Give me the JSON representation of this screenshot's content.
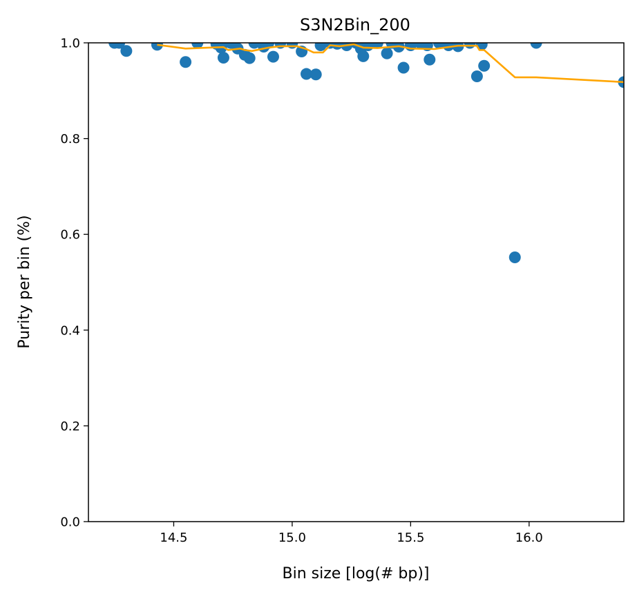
{
  "chart_data": {
    "type": "scatter",
    "title": "S3N2Bin_200",
    "xlabel": "Bin size [log(# bp)]",
    "ylabel": "Purity per bin (%)",
    "xlim": [
      14.14,
      16.4
    ],
    "ylim": [
      0.0,
      1.0
    ],
    "xticks": [
      14.5,
      15.0,
      15.5,
      16.0
    ],
    "xtick_labels": [
      "14.5",
      "15.0",
      "15.5",
      "16.0"
    ],
    "yticks": [
      0.0,
      0.2,
      0.4,
      0.6,
      0.8,
      1.0
    ],
    "ytick_labels": [
      "0.0",
      "0.2",
      "0.4",
      "0.6",
      "0.8",
      "1.0"
    ],
    "grid": false,
    "colors": {
      "points": "#1f77b4",
      "trend": "#ffa500"
    },
    "series": [
      {
        "kind": "scatter",
        "points": [
          [
            14.25,
            1.0
          ],
          [
            14.27,
            1.0
          ],
          [
            14.3,
            0.983
          ],
          [
            14.43,
            0.996
          ],
          [
            14.55,
            0.96
          ],
          [
            14.6,
            1.0
          ],
          [
            14.68,
            0.998
          ],
          [
            14.7,
            0.99
          ],
          [
            14.71,
            0.969
          ],
          [
            14.74,
            1.0
          ],
          [
            14.77,
            0.988
          ],
          [
            14.8,
            0.975
          ],
          [
            14.82,
            0.968
          ],
          [
            14.84,
            1.0
          ],
          [
            14.88,
            0.992
          ],
          [
            14.9,
            1.0
          ],
          [
            14.92,
            0.971
          ],
          [
            14.95,
            1.0
          ],
          [
            15.0,
            1.0
          ],
          [
            15.04,
            0.982
          ],
          [
            15.06,
            0.935
          ],
          [
            15.1,
            0.934
          ],
          [
            15.12,
            0.995
          ],
          [
            15.16,
            1.0
          ],
          [
            15.19,
            0.998
          ],
          [
            15.23,
            0.995
          ],
          [
            15.27,
            1.0
          ],
          [
            15.29,
            0.988
          ],
          [
            15.3,
            0.972
          ],
          [
            15.32,
            0.995
          ],
          [
            15.36,
            1.0
          ],
          [
            15.4,
            0.978
          ],
          [
            15.42,
            1.0
          ],
          [
            15.45,
            0.992
          ],
          [
            15.47,
            0.948
          ],
          [
            15.5,
            0.995
          ],
          [
            15.54,
            1.0
          ],
          [
            15.57,
            0.995
          ],
          [
            15.58,
            0.965
          ],
          [
            15.62,
            1.0
          ],
          [
            15.66,
            0.995
          ],
          [
            15.7,
            0.993
          ],
          [
            15.75,
            1.0
          ],
          [
            15.78,
            0.93
          ],
          [
            15.8,
            0.997
          ],
          [
            15.81,
            0.952
          ],
          [
            15.94,
            0.552
          ],
          [
            16.03,
            1.0
          ],
          [
            16.4,
            0.918
          ]
        ]
      },
      {
        "kind": "line",
        "points": [
          [
            14.43,
            0.996
          ],
          [
            14.55,
            0.988
          ],
          [
            14.65,
            0.99
          ],
          [
            14.71,
            0.991
          ],
          [
            14.73,
            0.985
          ],
          [
            14.78,
            0.988
          ],
          [
            14.8,
            0.985
          ],
          [
            14.83,
            0.983
          ],
          [
            14.9,
            0.99
          ],
          [
            14.95,
            0.993
          ],
          [
            15.02,
            0.993
          ],
          [
            15.06,
            0.987
          ],
          [
            15.09,
            0.98
          ],
          [
            15.13,
            0.98
          ],
          [
            15.16,
            0.995
          ],
          [
            15.2,
            0.993
          ],
          [
            15.26,
            0.997
          ],
          [
            15.3,
            0.99
          ],
          [
            15.36,
            0.989
          ],
          [
            15.45,
            0.993
          ],
          [
            15.5,
            0.988
          ],
          [
            15.6,
            0.987
          ],
          [
            15.7,
            0.994
          ],
          [
            15.78,
            0.994
          ],
          [
            15.79,
            0.985
          ],
          [
            15.81,
            0.985
          ],
          [
            15.94,
            0.928
          ],
          [
            16.03,
            0.928
          ],
          [
            16.4,
            0.918
          ]
        ]
      }
    ]
  }
}
